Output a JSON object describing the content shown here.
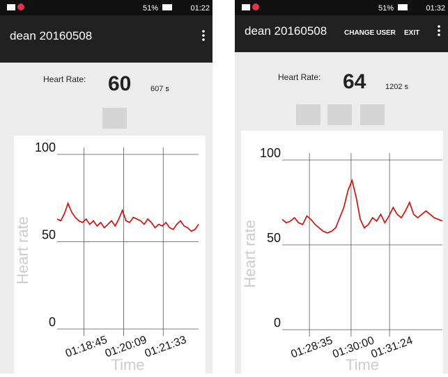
{
  "screens": [
    {
      "status": {
        "battery": "51%",
        "time": "01:22"
      },
      "app_bar": {
        "title": "dean 20160508"
      },
      "heart_rate": {
        "label": "Heart Rate:",
        "value": 60,
        "duration": "607 s"
      },
      "chart": {
        "type": "line",
        "color": "#e00000",
        "ylim": [
          0,
          100
        ],
        "yticks": [
          0,
          50,
          100
        ],
        "xtick_labels": [
          "01:18:45",
          "01:20:09",
          "01:21:33"
        ],
        "y_label": "Heart rate",
        "x_label": "Time",
        "values": [
          63,
          62,
          66,
          72,
          67,
          64,
          62,
          61,
          63,
          60,
          62,
          59,
          61,
          58,
          60,
          62,
          59,
          63,
          68,
          62,
          61,
          64,
          63,
          62,
          60,
          63,
          61,
          58,
          60,
          59,
          61,
          58,
          57,
          60,
          62,
          59,
          58,
          56,
          57,
          60
        ]
      }
    },
    {
      "status": {
        "battery": "51%",
        "time": "01:32"
      },
      "app_bar": {
        "title": "dean 20160508",
        "menu": [
          "CHANGE USER",
          "EXIT"
        ]
      },
      "heart_rate": {
        "label": "Heart Rate:",
        "value": 64,
        "duration": "1202 s"
      },
      "chart": {
        "type": "line",
        "color": "#e00000",
        "ylim": [
          0,
          100
        ],
        "yticks": [
          0,
          50,
          100
        ],
        "xtick_labels": [
          "01:28:35",
          "01:30:00",
          "01:31:24"
        ],
        "y_label": "Heart rate",
        "x_label": "Time",
        "values": [
          65,
          63,
          64,
          66,
          63,
          62,
          67,
          65,
          62,
          60,
          58,
          57,
          58,
          60,
          66,
          72,
          82,
          88,
          78,
          65,
          60,
          62,
          66,
          64,
          68,
          63,
          67,
          72,
          68,
          66,
          70,
          75,
          68,
          66,
          68,
          70,
          68,
          66,
          65,
          64
        ]
      }
    }
  ]
}
